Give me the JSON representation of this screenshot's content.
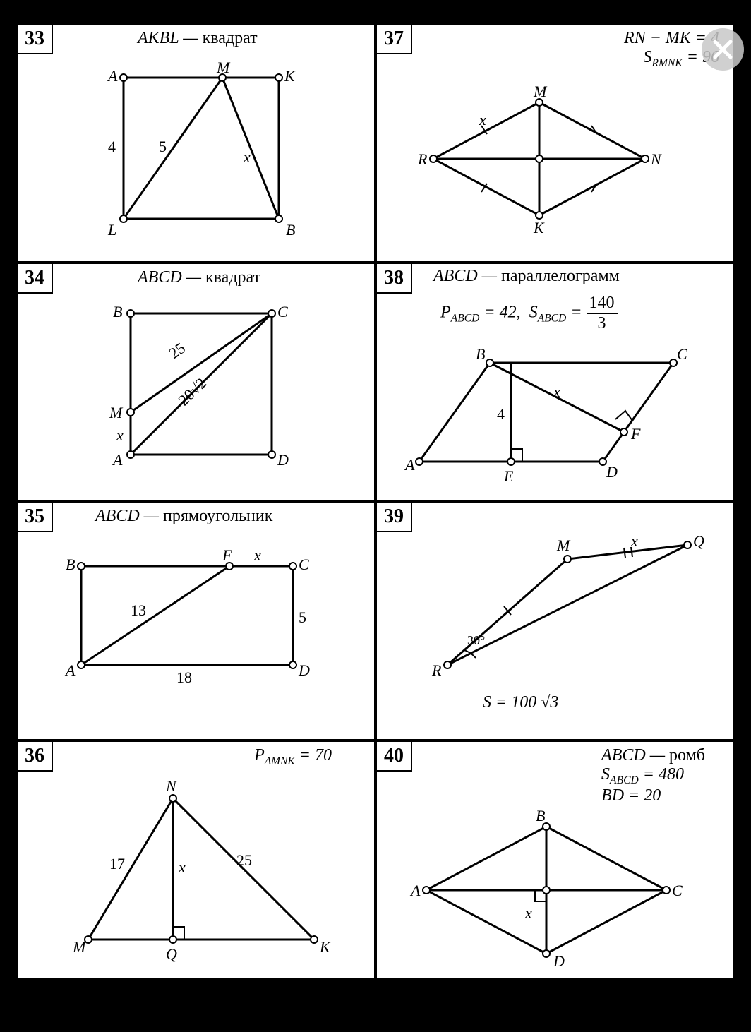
{
  "close_icon": "×",
  "cells": {
    "c33": {
      "num": "33",
      "title_html": "AKBL — <span class='up'>квадрат</span>",
      "labels": {
        "A": "A",
        "M": "M",
        "K": "K",
        "L": "L",
        "B": "B",
        "s4": "4",
        "s5": "5",
        "x": "x"
      }
    },
    "c37": {
      "num": "37",
      "line1_html": "RN − MK = 4",
      "line2_html": "S<span class='sub'>RMNK</span> = 96",
      "labels": {
        "R": "R",
        "M": "M",
        "N": "N",
        "K": "K",
        "x": "x"
      }
    },
    "c34": {
      "num": "34",
      "title_html": "ABCD — <span class='up'>квадрат</span>",
      "labels": {
        "A": "A",
        "B": "B",
        "C": "C",
        "D": "D",
        "M": "M",
        "x": "x",
        "v25": "25",
        "v20r2": "20√2"
      }
    },
    "c38": {
      "num": "38",
      "title_html": "ABCD — <span class='up'>параллелограмм</span>",
      "line2_html": "P<span class='sub'>ABCD</span> = 42,&nbsp;&nbsp;S<span class='sub'>ABCD</span> = <span class='frac'><span class='t'>140</span><span class='b'>3</span></span>",
      "labels": {
        "A": "A",
        "B": "B",
        "C": "C",
        "D": "D",
        "E": "E",
        "F": "F",
        "x": "x",
        "v4": "4"
      }
    },
    "c35": {
      "num": "35",
      "title_html": "ABCD — <span class='up'>прямоугольник</span>",
      "labels": {
        "A": "A",
        "B": "B",
        "C": "C",
        "D": "D",
        "F": "F",
        "x": "x",
        "v13": "13",
        "v5": "5",
        "v18": "18"
      }
    },
    "c39": {
      "num": "39",
      "bottom_html": "S = 100 √3",
      "labels": {
        "R": "R",
        "M": "M",
        "Q": "Q",
        "x": "x",
        "ang": "30°"
      }
    },
    "c36": {
      "num": "36",
      "title_html": "P<span class='sub'>ΔMNK</span> = 70",
      "labels": {
        "M": "M",
        "N": "N",
        "K": "K",
        "Q": "Q",
        "v17": "17",
        "v25": "25",
        "x": "x"
      }
    },
    "c40": {
      "num": "40",
      "line1_html": "ABCD — <span class='up'>ромб</span>",
      "line2_html": "S<span class='sub'>ABCD</span> = 480",
      "line3_html": "BD = 20",
      "labels": {
        "A": "A",
        "B": "B",
        "C": "C",
        "D": "D",
        "x": "x"
      }
    }
  },
  "style": {
    "stroke": "#000",
    "stroke_w": 3,
    "node_r": 5,
    "node_fill": "#fff"
  }
}
